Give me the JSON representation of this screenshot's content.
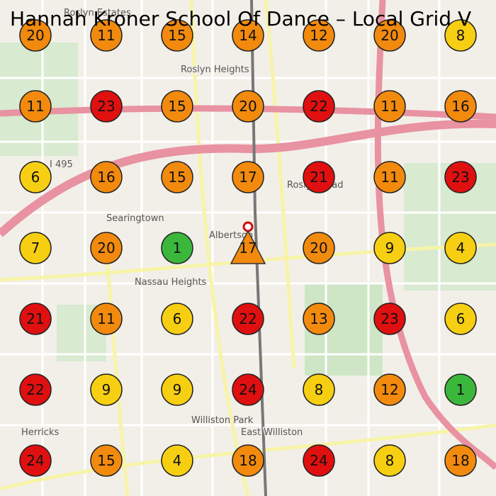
{
  "title": "Hannah Kroner School Of Dance – Local Grid V",
  "map_labels": [
    "Roslyn Estates",
    "Roslyn Heights",
    "Searingtown",
    "Albertson",
    "East Williston",
    "Williston Park",
    "Herricks",
    "I 495",
    "Nassau Heights",
    "Roslyn Road"
  ],
  "grid": {
    "rows": [
      [
        {
          "rank": 20,
          "color": "#f28a0e"
        },
        {
          "rank": 11,
          "color": "#f28a0e"
        },
        {
          "rank": 15,
          "color": "#f28a0e"
        },
        {
          "rank": 14,
          "color": "#f28a0e"
        },
        {
          "rank": 12,
          "color": "#f28a0e"
        },
        {
          "rank": 20,
          "color": "#f28a0e"
        },
        {
          "rank": 8,
          "color": "#f7cf12"
        }
      ],
      [
        {
          "rank": 11,
          "color": "#f28a0e"
        },
        {
          "rank": 23,
          "color": "#e01010"
        },
        {
          "rank": 15,
          "color": "#f28a0e"
        },
        {
          "rank": 20,
          "color": "#f28a0e"
        },
        {
          "rank": 22,
          "color": "#e01010"
        },
        {
          "rank": 11,
          "color": "#f28a0e"
        },
        {
          "rank": 16,
          "color": "#f28a0e"
        }
      ],
      [
        {
          "rank": 6,
          "color": "#f7cf12"
        },
        {
          "rank": 16,
          "color": "#f28a0e"
        },
        {
          "rank": 15,
          "color": "#f28a0e"
        },
        {
          "rank": 17,
          "color": "#f28a0e"
        },
        {
          "rank": 21,
          "color": "#e01010"
        },
        {
          "rank": 11,
          "color": "#f28a0e"
        },
        {
          "rank": 23,
          "color": "#e01010"
        }
      ],
      [
        {
          "rank": 7,
          "color": "#f7cf12"
        },
        {
          "rank": 20,
          "color": "#f28a0e"
        },
        {
          "rank": 1,
          "color": "#3bb83b"
        },
        {
          "rank": 17,
          "color": "#f28a0e",
          "shape": "triangle"
        },
        {
          "rank": 20,
          "color": "#f28a0e"
        },
        {
          "rank": 9,
          "color": "#f7cf12"
        },
        {
          "rank": 4,
          "color": "#f7cf12"
        }
      ],
      [
        {
          "rank": 21,
          "color": "#e01010"
        },
        {
          "rank": 11,
          "color": "#f28a0e"
        },
        {
          "rank": 6,
          "color": "#f7cf12"
        },
        {
          "rank": 22,
          "color": "#e01010"
        },
        {
          "rank": 13,
          "color": "#f28a0e"
        },
        {
          "rank": 23,
          "color": "#e01010"
        },
        {
          "rank": 6,
          "color": "#f7cf12"
        }
      ],
      [
        {
          "rank": 22,
          "color": "#e01010"
        },
        {
          "rank": 9,
          "color": "#f7cf12"
        },
        {
          "rank": 9,
          "color": "#f7cf12"
        },
        {
          "rank": 24,
          "color": "#e01010"
        },
        {
          "rank": 8,
          "color": "#f7cf12"
        },
        {
          "rank": 12,
          "color": "#f28a0e"
        },
        {
          "rank": 1,
          "color": "#3bb83b"
        }
      ],
      [
        {
          "rank": 24,
          "color": "#e01010"
        },
        {
          "rank": 15,
          "color": "#f28a0e"
        },
        {
          "rank": 4,
          "color": "#f7cf12"
        },
        {
          "rank": 18,
          "color": "#f28a0e"
        },
        {
          "rank": 24,
          "color": "#e01010"
        },
        {
          "rank": 8,
          "color": "#f7cf12"
        },
        {
          "rank": 18,
          "color": "#f28a0e"
        }
      ]
    ]
  }
}
